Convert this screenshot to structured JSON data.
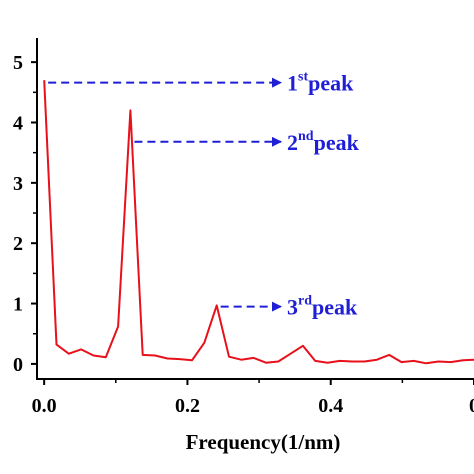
{
  "chart_data": {
    "type": "line",
    "title": "",
    "xlabel": "Frequency(1/nm)",
    "ylabel": "",
    "xlim": [
      -0.01,
      0.6
    ],
    "ylim": [
      -0.25,
      5.4
    ],
    "x_ticks": [
      "0.0",
      "0.2",
      "0.4",
      "0"
    ],
    "y_ticks": [
      "0",
      "1",
      "2",
      "3",
      "4",
      "5"
    ],
    "grid": false,
    "legend": "none",
    "colors": {
      "line": "#e8101a",
      "annotation": "#1f1fd6",
      "axis": "#000000"
    },
    "series": [
      {
        "x": [
          0.0,
          0.0172,
          0.0344,
          0.0516,
          0.0688,
          0.086,
          0.1032,
          0.1204,
          0.1376,
          0.1548,
          0.172,
          0.1892,
          0.2064,
          0.2236,
          0.2408,
          0.258,
          0.2752,
          0.2924,
          0.3096,
          0.3268,
          0.344,
          0.3612,
          0.3784,
          0.3956,
          0.4128,
          0.43,
          0.4472,
          0.4644,
          0.4816,
          0.4988,
          0.516,
          0.5332,
          0.5504,
          0.5676,
          0.5848,
          0.6
        ],
        "values": [
          4.7,
          0.32,
          0.17,
          0.24,
          0.14,
          0.11,
          0.62,
          4.2,
          0.15,
          0.14,
          0.09,
          0.08,
          0.06,
          0.35,
          0.97,
          0.12,
          0.07,
          0.1,
          0.02,
          0.04,
          0.17,
          0.3,
          0.05,
          0.02,
          0.05,
          0.04,
          0.04,
          0.07,
          0.15,
          0.03,
          0.05,
          0.01,
          0.04,
          0.03,
          0.06,
          0.07
        ]
      }
    ],
    "annotations": [
      {
        "base": "1",
        "sup": "st",
        "text": "peak",
        "x": 0.0,
        "y": 4.66,
        "label_y": 4.66
      },
      {
        "base": "2",
        "sup": "nd",
        "text": "peak",
        "x": 0.1204,
        "y": 3.68,
        "label_y": 3.68
      },
      {
        "base": "3",
        "sup": "rd",
        "text": "peak",
        "x": 0.2408,
        "y": 0.95,
        "label_y": 0.95
      }
    ]
  }
}
